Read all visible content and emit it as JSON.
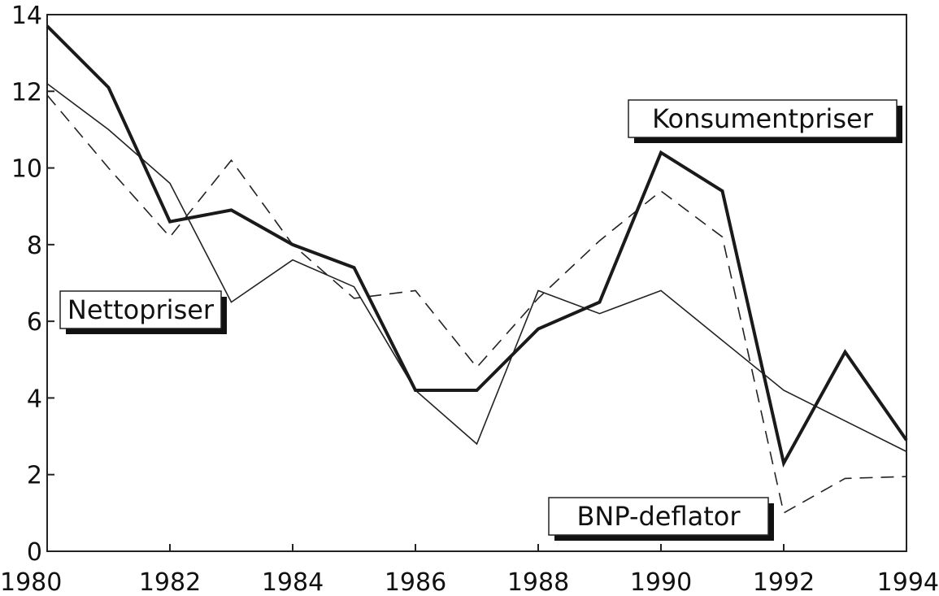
{
  "chart_data": {
    "type": "line",
    "x": [
      1980,
      1981,
      1982,
      1983,
      1984,
      1985,
      1986,
      1987,
      1988,
      1989,
      1990,
      1991,
      1992,
      1993,
      1994
    ],
    "xlim": [
      1980,
      1994
    ],
    "ylim": [
      0,
      14
    ],
    "x_ticks": [
      "1980",
      "1982",
      "1984",
      "1986",
      "1988",
      "1990",
      "1992",
      "1994"
    ],
    "y_ticks": [
      "0",
      "2",
      "4",
      "6",
      "8",
      "10",
      "12",
      "14"
    ],
    "grid": false,
    "series": [
      {
        "name": "Konsumentpriser",
        "style": "thick",
        "values": [
          13.7,
          12.1,
          8.6,
          8.9,
          8.0,
          7.4,
          4.2,
          4.2,
          5.8,
          6.5,
          10.4,
          9.4,
          2.3,
          5.2,
          2.9
        ]
      },
      {
        "name": "Nettopriser",
        "style": "thin",
        "values": [
          12.2,
          11.0,
          9.6,
          6.5,
          7.6,
          6.9,
          4.2,
          2.8,
          6.8,
          6.2,
          6.8,
          5.5,
          4.2,
          3.4,
          2.6
        ]
      },
      {
        "name": "BNP-deflator",
        "style": "dashed",
        "values": [
          11.9,
          10.0,
          8.2,
          10.2,
          8.0,
          6.6,
          6.8,
          4.8,
          6.6,
          8.1,
          9.4,
          8.2,
          1.0,
          1.9,
          1.95
        ]
      }
    ]
  }
}
